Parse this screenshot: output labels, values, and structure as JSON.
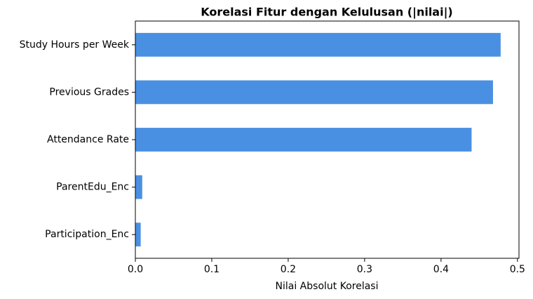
{
  "chart_data": {
    "type": "barh",
    "title": "Korelasi Fitur dengan Kelulusan (|nilai|)",
    "x_label": "Nilai Absolut Korelasi",
    "categories": [
      "Study Hours per Week",
      "Previous Grades",
      "Attendance Rate",
      "ParentEdu_Enc",
      "Participation_Enc"
    ],
    "values": [
      0.478,
      0.468,
      0.44,
      0.009,
      0.007
    ],
    "color": "#4a90e2",
    "xlim": [
      0,
      0.502
    ],
    "xticks": [
      {
        "value": 0,
        "label": "0.0"
      },
      0.1,
      0.2,
      0.3,
      0.4,
      0.5
    ]
  }
}
